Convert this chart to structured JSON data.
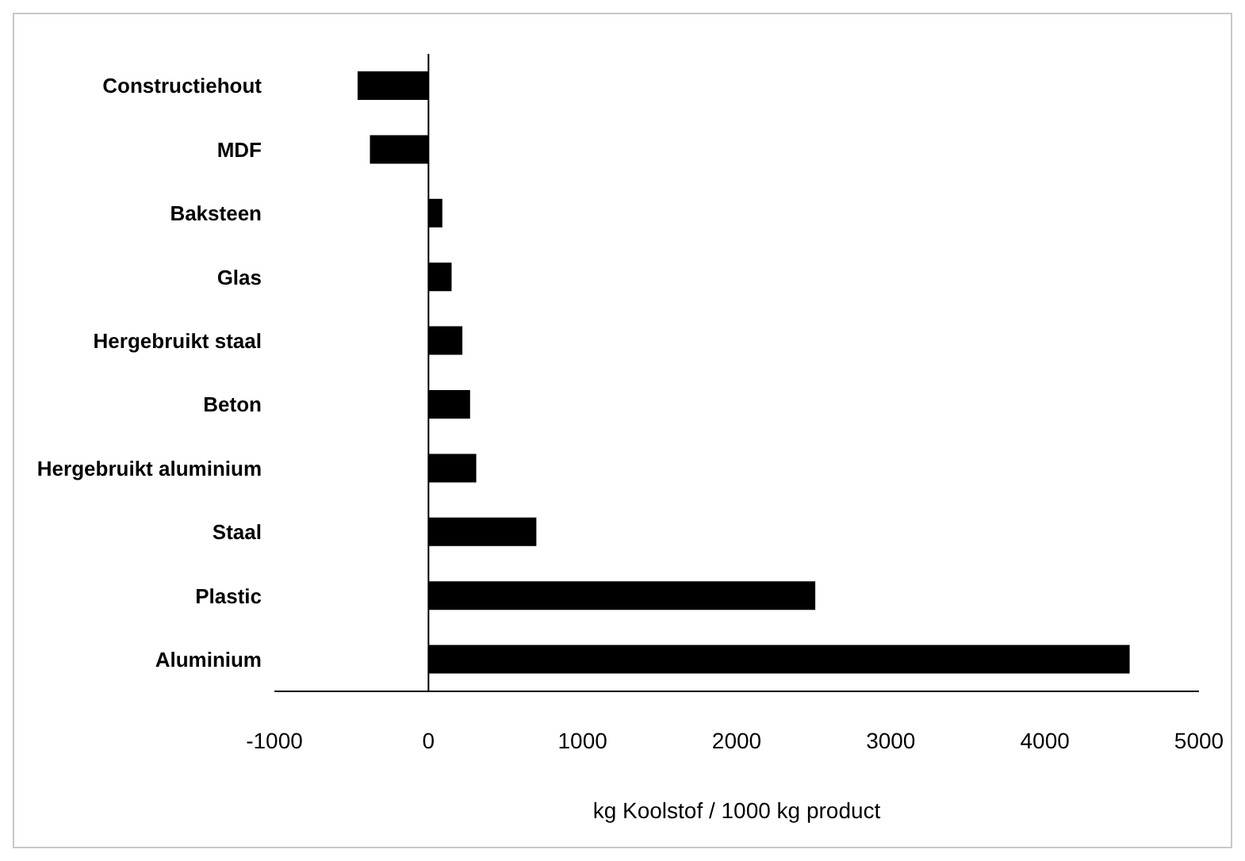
{
  "chart_data": {
    "type": "bar",
    "orientation": "horizontal",
    "xlabel": "kg Koolstof / 1000 kg product",
    "categories": [
      "Constructiehout",
      "MDF",
      "Baksteen",
      "Glas",
      "Hergebruikt staal",
      "Beton",
      "Hergebruikt aluminium",
      "Staal",
      "Plastic",
      "Aluminium"
    ],
    "values": [
      -460,
      -380,
      90,
      150,
      220,
      270,
      310,
      700,
      2510,
      4550
    ],
    "color": "#000000",
    "xlim": [
      -1000,
      5000
    ],
    "xticks": [
      -1000,
      0,
      1000,
      2000,
      3000,
      4000,
      5000
    ]
  }
}
